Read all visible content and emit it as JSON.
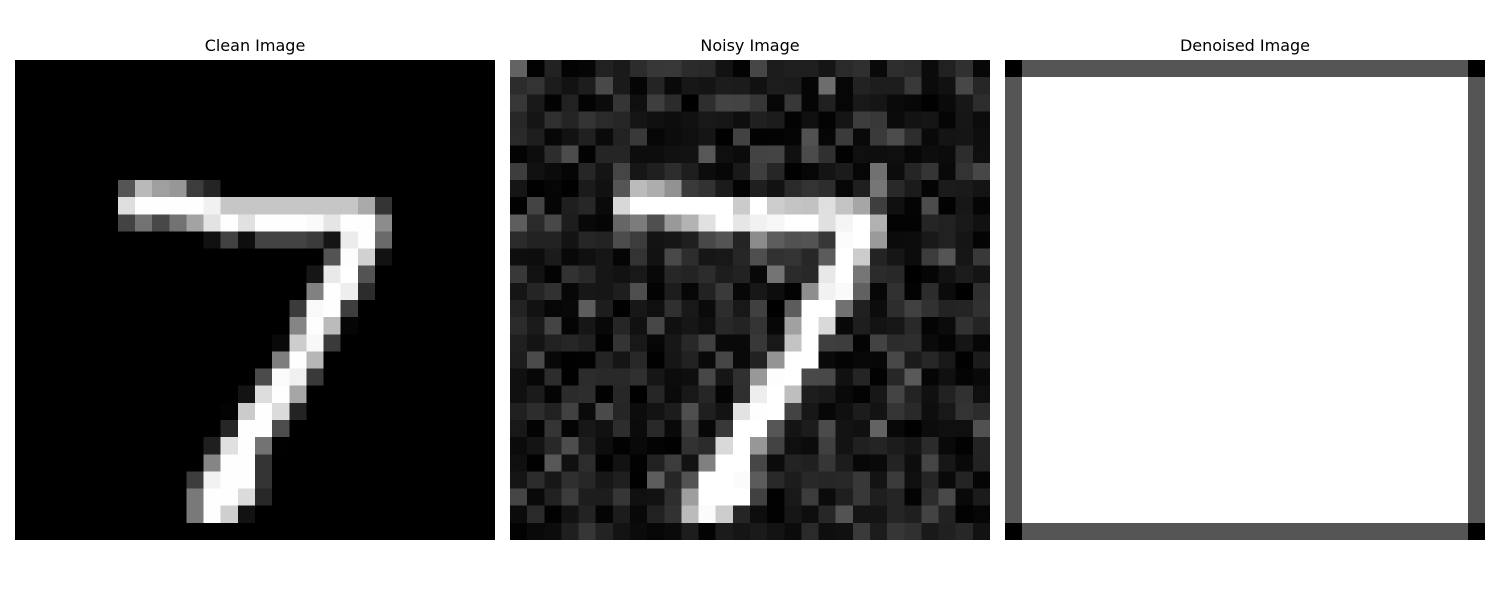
{
  "chart_data": [
    {
      "type": "heatmap",
      "title": "Clean Image",
      "colormap": "gray",
      "grid": false,
      "axis_visible": false,
      "shape": [
        28,
        28
      ],
      "value_range": [
        0,
        255
      ],
      "nonzero_pixels": [
        [
          7,
          6,
          85
        ],
        [
          7,
          7,
          185
        ],
        [
          7,
          8,
          159
        ],
        [
          7,
          9,
          151
        ],
        [
          7,
          10,
          60
        ],
        [
          7,
          11,
          36
        ],
        [
          8,
          6,
          222
        ],
        [
          8,
          7,
          254
        ],
        [
          8,
          8,
          254
        ],
        [
          8,
          9,
          254
        ],
        [
          8,
          10,
          254
        ],
        [
          8,
          11,
          241
        ],
        [
          8,
          12,
          198
        ],
        [
          8,
          13,
          198
        ],
        [
          8,
          14,
          198
        ],
        [
          8,
          15,
          198
        ],
        [
          8,
          16,
          198
        ],
        [
          8,
          17,
          198
        ],
        [
          8,
          18,
          198
        ],
        [
          8,
          19,
          198
        ],
        [
          8,
          20,
          170
        ],
        [
          8,
          21,
          52
        ],
        [
          9,
          6,
          67
        ],
        [
          9,
          7,
          114
        ],
        [
          9,
          8,
          72
        ],
        [
          9,
          9,
          114
        ],
        [
          9,
          10,
          163
        ],
        [
          9,
          11,
          227
        ],
        [
          9,
          12,
          254
        ],
        [
          9,
          13,
          225
        ],
        [
          9,
          14,
          254
        ],
        [
          9,
          15,
          254
        ],
        [
          9,
          16,
          254
        ],
        [
          9,
          17,
          250
        ],
        [
          9,
          18,
          229
        ],
        [
          9,
          19,
          254
        ],
        [
          9,
          20,
          254
        ],
        [
          9,
          21,
          140
        ],
        [
          10,
          11,
          17
        ],
        [
          10,
          12,
          66
        ],
        [
          10,
          13,
          14
        ],
        [
          10,
          14,
          67
        ],
        [
          10,
          15,
          67
        ],
        [
          10,
          16,
          67
        ],
        [
          10,
          17,
          59
        ],
        [
          10,
          18,
          21
        ],
        [
          10,
          19,
          236
        ],
        [
          10,
          20,
          254
        ],
        [
          10,
          21,
          106
        ],
        [
          11,
          18,
          83
        ],
        [
          11,
          19,
          253
        ],
        [
          11,
          20,
          209
        ],
        [
          11,
          21,
          18
        ],
        [
          12,
          17,
          22
        ],
        [
          12,
          18,
          233
        ],
        [
          12,
          19,
          255
        ],
        [
          12,
          20,
          83
        ],
        [
          13,
          17,
          129
        ],
        [
          13,
          18,
          254
        ],
        [
          13,
          19,
          238
        ],
        [
          13,
          20,
          44
        ],
        [
          14,
          16,
          59
        ],
        [
          14,
          17,
          249
        ],
        [
          14,
          18,
          254
        ],
        [
          14,
          19,
          62
        ],
        [
          15,
          16,
          133
        ],
        [
          15,
          17,
          254
        ],
        [
          15,
          18,
          187
        ],
        [
          15,
          19,
          5
        ],
        [
          16,
          15,
          9
        ],
        [
          16,
          16,
          205
        ],
        [
          16,
          17,
          248
        ],
        [
          16,
          18,
          58
        ],
        [
          17,
          15,
          126
        ],
        [
          17,
          16,
          254
        ],
        [
          17,
          17,
          182
        ],
        [
          18,
          14,
          75
        ],
        [
          18,
          15,
          251
        ],
        [
          18,
          16,
          240
        ],
        [
          18,
          17,
          57
        ],
        [
          19,
          13,
          19
        ],
        [
          19,
          14,
          221
        ],
        [
          19,
          15,
          254
        ],
        [
          19,
          16,
          166
        ],
        [
          20,
          12,
          3
        ],
        [
          20,
          13,
          203
        ],
        [
          20,
          14,
          254
        ],
        [
          20,
          15,
          219
        ],
        [
          20,
          16,
          35
        ],
        [
          21,
          12,
          38
        ],
        [
          21,
          13,
          254
        ],
        [
          21,
          14,
          254
        ],
        [
          21,
          15,
          77
        ],
        [
          22,
          11,
          31
        ],
        [
          22,
          12,
          224
        ],
        [
          22,
          13,
          254
        ],
        [
          22,
          14,
          115
        ],
        [
          22,
          15,
          1
        ],
        [
          23,
          11,
          133
        ],
        [
          23,
          12,
          254
        ],
        [
          23,
          13,
          254
        ],
        [
          23,
          14,
          52
        ],
        [
          24,
          10,
          61
        ],
        [
          24,
          11,
          242
        ],
        [
          24,
          12,
          254
        ],
        [
          24,
          13,
          254
        ],
        [
          24,
          14,
          52
        ],
        [
          25,
          10,
          121
        ],
        [
          25,
          11,
          254
        ],
        [
          25,
          12,
          254
        ],
        [
          25,
          13,
          219
        ],
        [
          25,
          14,
          40
        ],
        [
          26,
          10,
          121
        ],
        [
          26,
          11,
          254
        ],
        [
          26,
          12,
          207
        ],
        [
          26,
          13,
          18
        ]
      ]
    },
    {
      "type": "heatmap",
      "title": "Noisy Image",
      "colormap": "gray",
      "grid": false,
      "axis_visible": false,
      "shape": [
        28,
        28
      ],
      "value_range": [
        0,
        255
      ],
      "noise": {
        "type": "gaussian",
        "seed": 7,
        "mean": 0,
        "std": 45,
        "scale": 0.8,
        "clip": [
          0,
          255
        ]
      },
      "base": "Clean Image"
    },
    {
      "type": "heatmap",
      "title": "Denoised Image",
      "colormap": "gray",
      "grid": false,
      "axis_visible": false,
      "shape": [
        28,
        28
      ],
      "value_range": [
        0,
        255
      ],
      "fill_value": 255,
      "border_value": 85,
      "corner_value": 0
    }
  ]
}
